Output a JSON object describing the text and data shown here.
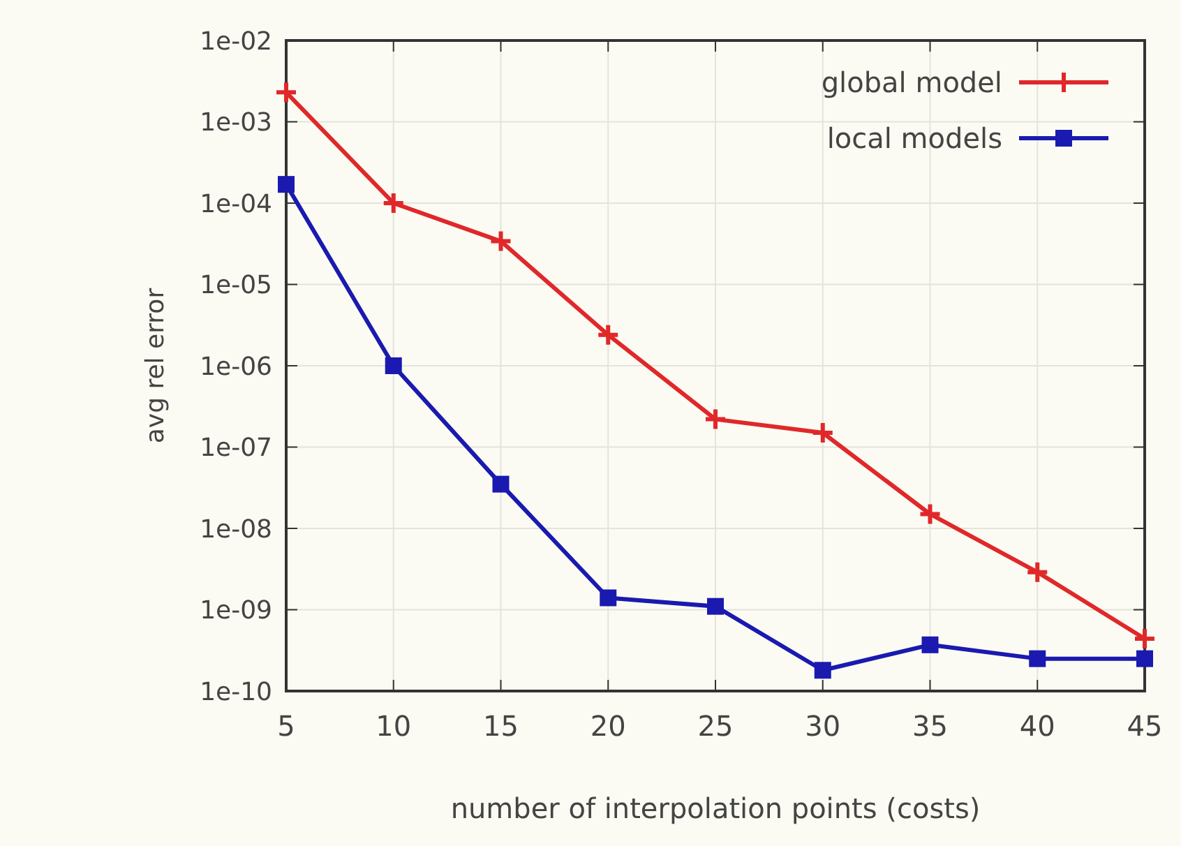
{
  "chart_data": {
    "type": "line",
    "xlabel": "number of interpolation points (costs)",
    "ylabel": "avg rel error",
    "x": [
      5,
      10,
      15,
      20,
      25,
      30,
      35,
      40,
      45
    ],
    "log": "y",
    "xlim": [
      5,
      45
    ],
    "xticks": [
      5,
      10,
      15,
      20,
      25,
      30,
      35,
      40,
      45
    ],
    "ylim": [
      1e-10,
      0.01
    ],
    "yticks": [
      {
        "value": 1e-10,
        "label": "1e-10"
      },
      {
        "value": 1e-09,
        "label": "1e-09"
      },
      {
        "value": 1e-08,
        "label": "1e-08"
      },
      {
        "value": 1e-07,
        "label": "1e-07"
      },
      {
        "value": 1e-06,
        "label": "1e-06"
      },
      {
        "value": 1e-05,
        "label": "1e-05"
      },
      {
        "value": 0.0001,
        "label": "1e-04"
      },
      {
        "value": 0.001,
        "label": "1e-03"
      },
      {
        "value": 0.01,
        "label": "1e-02"
      }
    ],
    "grid": true,
    "legend": "top right",
    "series": [
      {
        "name": "global model",
        "color": "#e0282a",
        "marker": "cross",
        "values": [
          0.0023,
          0.0001,
          3.4e-05,
          2.4e-06,
          2.2e-07,
          1.5e-07,
          1.5e-08,
          2.9e-09,
          4.4e-10
        ]
      },
      {
        "name": "local models",
        "color": "#1a1ab0",
        "marker": "square",
        "values": [
          0.00017,
          1e-06,
          3.5e-08,
          1.4e-09,
          1.1e-09,
          1.8e-10,
          3.7e-10,
          2.5e-10,
          2.5e-10
        ]
      }
    ]
  }
}
